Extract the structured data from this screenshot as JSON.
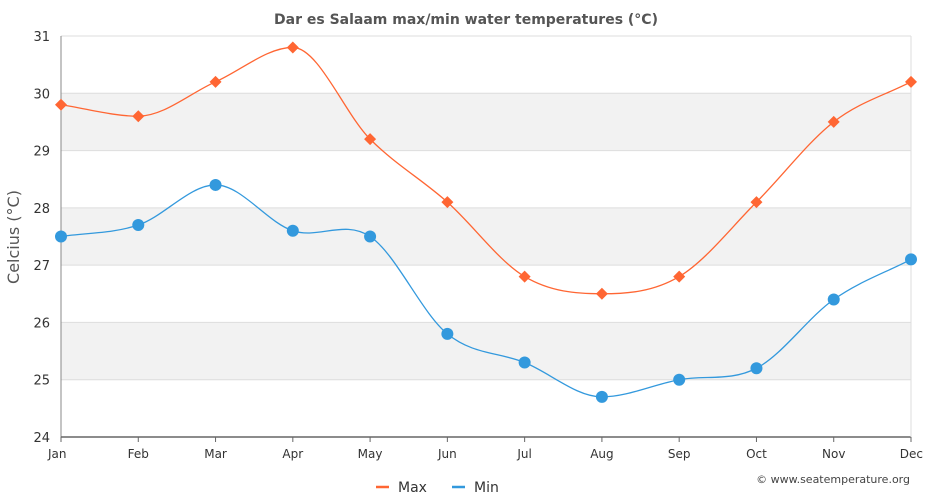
{
  "chart_data": {
    "type": "line",
    "title": "Dar es Salaam max/min water temperatures (°C)",
    "ylabel": "Celcius (°C)",
    "xlabel": "",
    "categories": [
      "Jan",
      "Feb",
      "Mar",
      "Apr",
      "May",
      "Jun",
      "Jul",
      "Aug",
      "Sep",
      "Oct",
      "Nov",
      "Dec"
    ],
    "ylim": [
      24,
      31
    ],
    "yticks": [
      24,
      25,
      26,
      27,
      28,
      29,
      30,
      31
    ],
    "series": [
      {
        "name": "Max",
        "color": "#ff6633",
        "marker": "diamond",
        "values": [
          29.8,
          29.6,
          30.2,
          30.8,
          29.2,
          28.1,
          26.8,
          26.5,
          26.8,
          28.1,
          29.5,
          30.2
        ]
      },
      {
        "name": "Min",
        "color": "#3399dd",
        "marker": "circle",
        "values": [
          27.5,
          27.7,
          28.4,
          27.6,
          27.5,
          25.8,
          25.3,
          24.7,
          25.0,
          25.2,
          26.4,
          27.1
        ]
      }
    ],
    "grid": true,
    "legend": "bottom-center",
    "credit": "© www.seatemperature.org"
  }
}
